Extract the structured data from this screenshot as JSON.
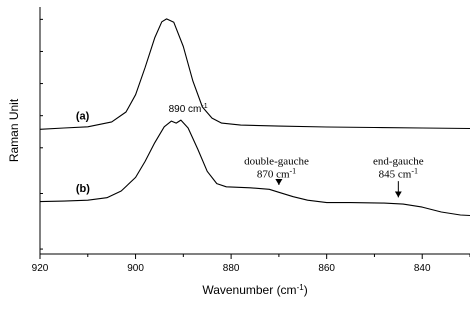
{
  "chart_data": {
    "type": "line",
    "xlabel": "Wavenumber (cm",
    "xlabel_sup": "-1",
    "xlabel_close": ")",
    "ylabel": "Raman Unit",
    "xlim": [
      920,
      830
    ],
    "ylim": [
      0,
      10
    ],
    "x_ticks": [
      920,
      900,
      880,
      860,
      840
    ],
    "x_tick_labels": [
      "920",
      "900",
      "880",
      "860",
      "840"
    ],
    "x_minor_ticks": [
      910,
      890,
      870,
      850,
      830
    ],
    "y_ticks": [
      0.2,
      2.45,
      4.3,
      5.6,
      6.9,
      8.2,
      9.5
    ],
    "grid": false,
    "legend": "none",
    "series": [
      {
        "label": "(a)",
        "label_x": 912.5,
        "label_y": 5.45,
        "points": [
          [
            920,
            5.05
          ],
          [
            915,
            5.1
          ],
          [
            910,
            5.15
          ],
          [
            905,
            5.35
          ],
          [
            902,
            5.75
          ],
          [
            900,
            6.45
          ],
          [
            898,
            7.55
          ],
          [
            896,
            8.75
          ],
          [
            894.5,
            9.4
          ],
          [
            893.5,
            9.52
          ],
          [
            892,
            9.38
          ],
          [
            890,
            8.4
          ],
          [
            888,
            7.0
          ],
          [
            886,
            5.95
          ],
          [
            884,
            5.5
          ],
          [
            882,
            5.3
          ],
          [
            878,
            5.22
          ],
          [
            870,
            5.18
          ],
          [
            860,
            5.14
          ],
          [
            850,
            5.12
          ],
          [
            840,
            5.1
          ],
          [
            830,
            5.08
          ]
        ]
      },
      {
        "label": "(b)",
        "label_x": 912.5,
        "label_y": 2.52,
        "points": [
          [
            920,
            2.12
          ],
          [
            915,
            2.14
          ],
          [
            910,
            2.18
          ],
          [
            906,
            2.28
          ],
          [
            903,
            2.55
          ],
          [
            900,
            3.1
          ],
          [
            898,
            3.75
          ],
          [
            896,
            4.5
          ],
          [
            894,
            5.15
          ],
          [
            892.5,
            5.38
          ],
          [
            891.5,
            5.3
          ],
          [
            890.5,
            5.42
          ],
          [
            889,
            5.1
          ],
          [
            887,
            4.25
          ],
          [
            885,
            3.35
          ],
          [
            883,
            2.85
          ],
          [
            881,
            2.72
          ],
          [
            876,
            2.68
          ],
          [
            872,
            2.62
          ],
          [
            870,
            2.5
          ],
          [
            867,
            2.32
          ],
          [
            864,
            2.18
          ],
          [
            860,
            2.08
          ],
          [
            855,
            2.08
          ],
          [
            848,
            2.06
          ],
          [
            844,
            2.02
          ],
          [
            840,
            1.9
          ],
          [
            836,
            1.7
          ],
          [
            832,
            1.58
          ],
          [
            830,
            1.56
          ]
        ]
      }
    ],
    "annotations": [
      {
        "id": "peak-label",
        "text": "890 cm",
        "sup": "-1",
        "x": 889,
        "y": 5.75,
        "font": "sans"
      },
      {
        "id": "double-gauche-title",
        "text": "double-gauche",
        "x": 870.5,
        "y": 3.62,
        "font": "serif"
      },
      {
        "id": "double-gauche-value",
        "text": "870 cm",
        "sup": "-1",
        "x": 870.5,
        "y": 3.1,
        "font": "serif"
      },
      {
        "id": "end-gauche-title",
        "text": "end-gauche",
        "x": 845,
        "y": 3.62,
        "font": "serif"
      },
      {
        "id": "end-gauche-value",
        "text": "845 cm",
        "sup": "-1",
        "x": 845,
        "y": 3.1,
        "font": "serif"
      }
    ],
    "arrows": [
      {
        "id": "arrow-870",
        "x": 870,
        "y_from": 2.95,
        "y_to": 2.55
      },
      {
        "id": "arrow-845",
        "x": 845,
        "y_from": 2.95,
        "y_to": 2.05
      }
    ]
  }
}
